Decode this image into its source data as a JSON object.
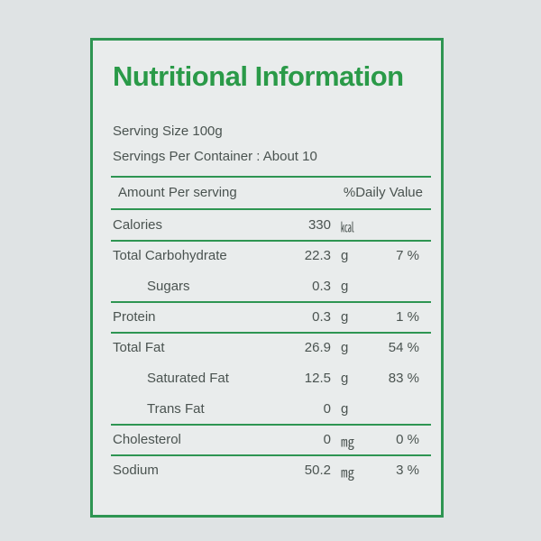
{
  "title": "Nutritional Information",
  "serving_size": "Serving Size 100g",
  "servings_per_container": "Servings Per Container : About 10",
  "table": {
    "header": {
      "left": "Amount Per serving",
      "right": "%Daily Value"
    },
    "sections": [
      [
        {
          "label": "Calories",
          "amount": "330",
          "unit": "㎉"
        }
      ],
      [
        {
          "label": "Total Carbohydrate",
          "amount": "22.3",
          "unit": "g",
          "daily_value": "7 %",
          "items": [
            {
              "label": "Sugars",
              "amount": "0.3",
              "unit": "g"
            }
          ]
        }
      ],
      [
        {
          "label": "Protein",
          "amount": "0.3",
          "unit": "g",
          "daily_value": "1 %"
        }
      ],
      [
        {
          "label": "Total Fat",
          "amount": "26.9",
          "unit": "g",
          "daily_value": "54 %",
          "items": [
            {
              "label": "Saturated Fat",
              "amount": "12.5",
              "unit": "g",
              "daily_value": "83 %"
            },
            {
              "label": "Trans Fat",
              "amount": "0",
              "unit": "g"
            }
          ]
        }
      ],
      [
        {
          "label": "Cholesterol",
          "amount": "0",
          "unit": "㎎",
          "daily_value": "0 %"
        }
      ],
      [
        {
          "label": "Sodium",
          "amount": "50.2",
          "unit": "㎎",
          "daily_value": "3 %"
        }
      ]
    ]
  }
}
